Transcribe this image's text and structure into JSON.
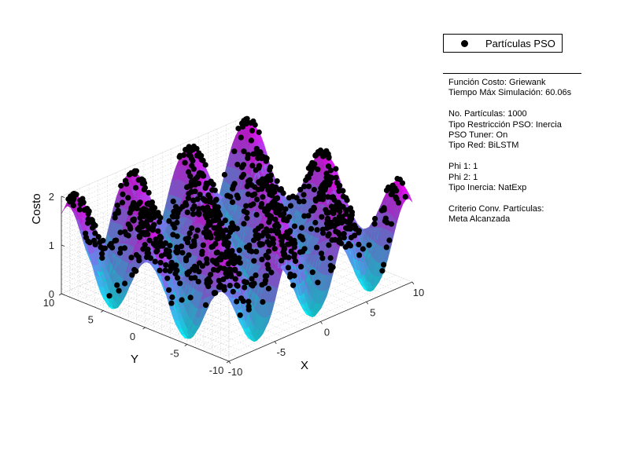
{
  "chart_data": {
    "type": "surface",
    "function": "griewank",
    "xlabel": "X",
    "ylabel": "Y",
    "zlabel": "Costo",
    "xlim": [
      -10,
      10
    ],
    "ylim": [
      -10,
      10
    ],
    "zlim": [
      0,
      2
    ],
    "x_ticks": [
      -10,
      -5,
      0,
      5,
      10
    ],
    "y_ticks": [
      -10,
      -5,
      0,
      5,
      10
    ],
    "z_ticks": [
      0,
      1,
      2
    ],
    "grid": true,
    "colormap": [
      "#00ffff",
      "#ff00ff"
    ],
    "series": [
      {
        "name": "Partículas PSO",
        "type": "scatter3d",
        "count": 1000,
        "color": "#000000"
      }
    ],
    "legend": {
      "position": "top-right",
      "entries": [
        "Partículas PSO"
      ]
    }
  },
  "info_panel": {
    "lines": [
      "Función Costo: Griewank",
      "Tiempo Máx Simulación: 60.06s",
      "",
      "No. Partículas: 1000",
      "Tipo Restricción PSO: Inercia",
      "PSO Tuner: On",
      "Tipo Red: BiLSTM",
      "",
      "Phi 1: 1",
      "Phi 2: 1",
      "Tipo Inercia: NatExp",
      "",
      "Criterio Conv. Partículas:",
      "Meta Alcanzada"
    ]
  }
}
